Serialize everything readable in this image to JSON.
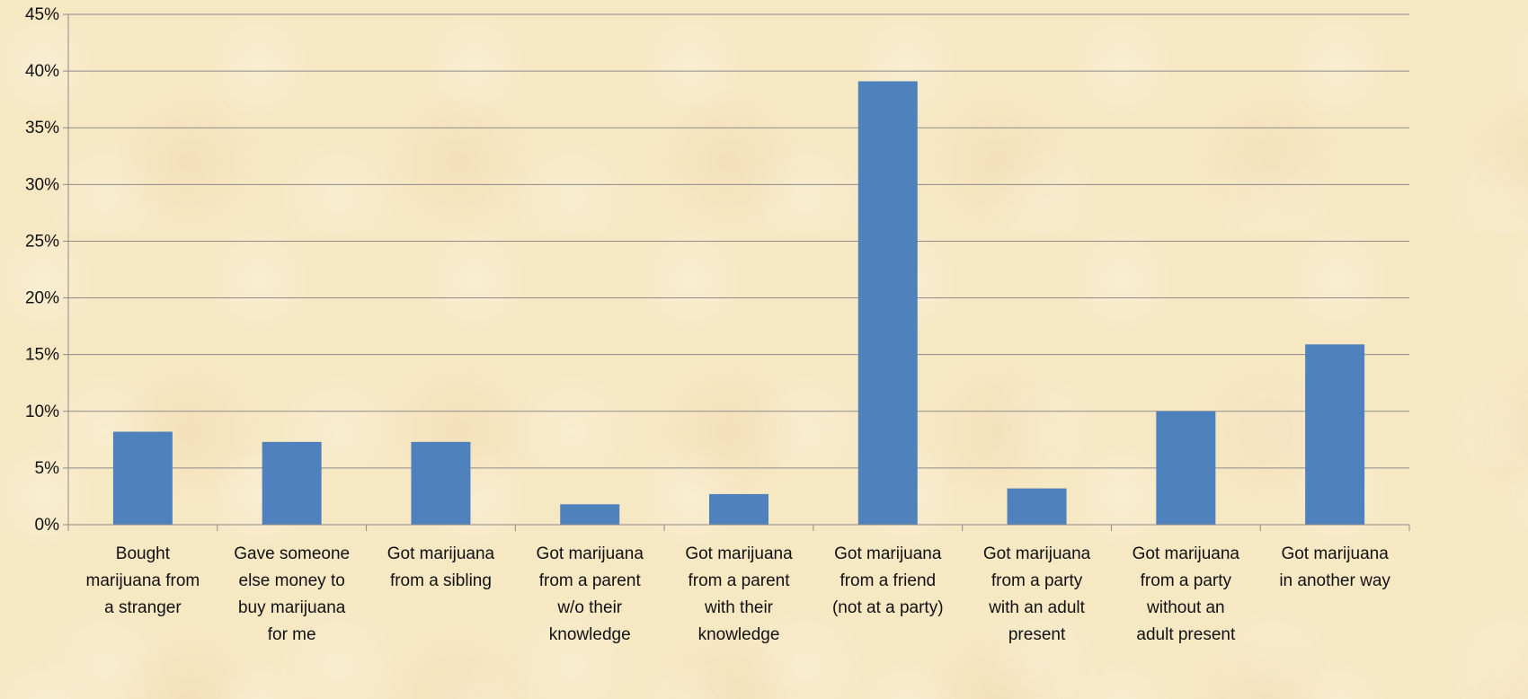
{
  "chart_data": {
    "type": "bar",
    "title": "",
    "xlabel": "",
    "ylabel": "",
    "ylim": [
      0,
      45
    ],
    "yticks": [
      "0%",
      "5%",
      "10%",
      "15%",
      "20%",
      "25%",
      "30%",
      "35%",
      "40%",
      "45%"
    ],
    "grid": true,
    "legend": "none",
    "bar_color": "#4f81bd",
    "categories": [
      "Bought marijuana from a stranger",
      "Gave someone else money to buy marijuana for me",
      "Got marijuana from a sibling",
      "Got marijuana from a parent w/o their knowledge",
      "Got marijuana from a parent with their knowledge",
      "Got marijuana from a friend (not at a party)",
      "Got marijuana from a party with an adult present",
      "Got marijuana from a party without an adult present",
      "Got marijuana in another way"
    ],
    "category_lines": [
      [
        "Bought",
        "marijuana from",
        "a stranger"
      ],
      [
        "Gave someone",
        "else money to",
        "buy marijuana",
        "for me"
      ],
      [
        "Got marijuana",
        "from a sibling"
      ],
      [
        "Got marijuana",
        "from a parent",
        "w/o their",
        "knowledge"
      ],
      [
        "Got marijuana",
        "from a parent",
        "with their",
        "knowledge"
      ],
      [
        "Got marijuana",
        "from a friend",
        "(not at a party)"
      ],
      [
        "Got marijuana",
        "from a party",
        "with an adult",
        "present"
      ],
      [
        "Got marijuana",
        "from a party",
        "without an",
        "adult present"
      ],
      [
        "Got marijuana",
        "in another way"
      ]
    ],
    "values": [
      8.2,
      7.3,
      7.3,
      1.8,
      2.7,
      39.1,
      3.2,
      10.0,
      15.9
    ]
  }
}
